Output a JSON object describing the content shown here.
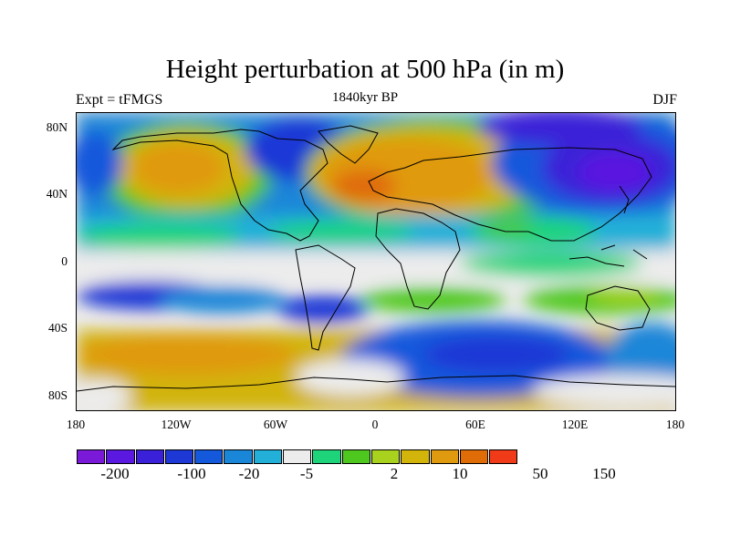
{
  "title": "Height perturbation at 500 hPa (in m)",
  "left_label": "Expt = tFMGS",
  "center_label": "1840kyr BP",
  "right_label": "DJF",
  "lat_ticks": [
    "80N",
    "40N",
    "0",
    "40S",
    "80S"
  ],
  "lon_ticks": [
    "180",
    "120W",
    "60W",
    "0",
    "60E",
    "120E",
    "180"
  ],
  "colorbar": {
    "colors": [
      "#7a1ad8",
      "#5a18e0",
      "#3a20d8",
      "#1e38d6",
      "#1458dc",
      "#1a86d8",
      "#22b0d8",
      "#ececec",
      "#1ed47a",
      "#4ec81e",
      "#a8d21e",
      "#d2b40a",
      "#e09a10",
      "#e06c08",
      "#f03a18"
    ],
    "labels": [
      "-200",
      "-100",
      "-20",
      "-5",
      "2",
      "10",
      "50",
      "150"
    ]
  },
  "regions": [
    {
      "name": "arctic-low",
      "color": "#1e38d6"
    },
    {
      "name": "north-atlantic-high",
      "color": "#e09a10"
    },
    {
      "name": "pacific-high",
      "color": "#e09a10"
    },
    {
      "name": "asia-low",
      "color": "#5a18e0"
    },
    {
      "name": "southern-ocean-low",
      "color": "#1458dc"
    },
    {
      "name": "south-pacific-high",
      "color": "#d2b40a"
    }
  ]
}
